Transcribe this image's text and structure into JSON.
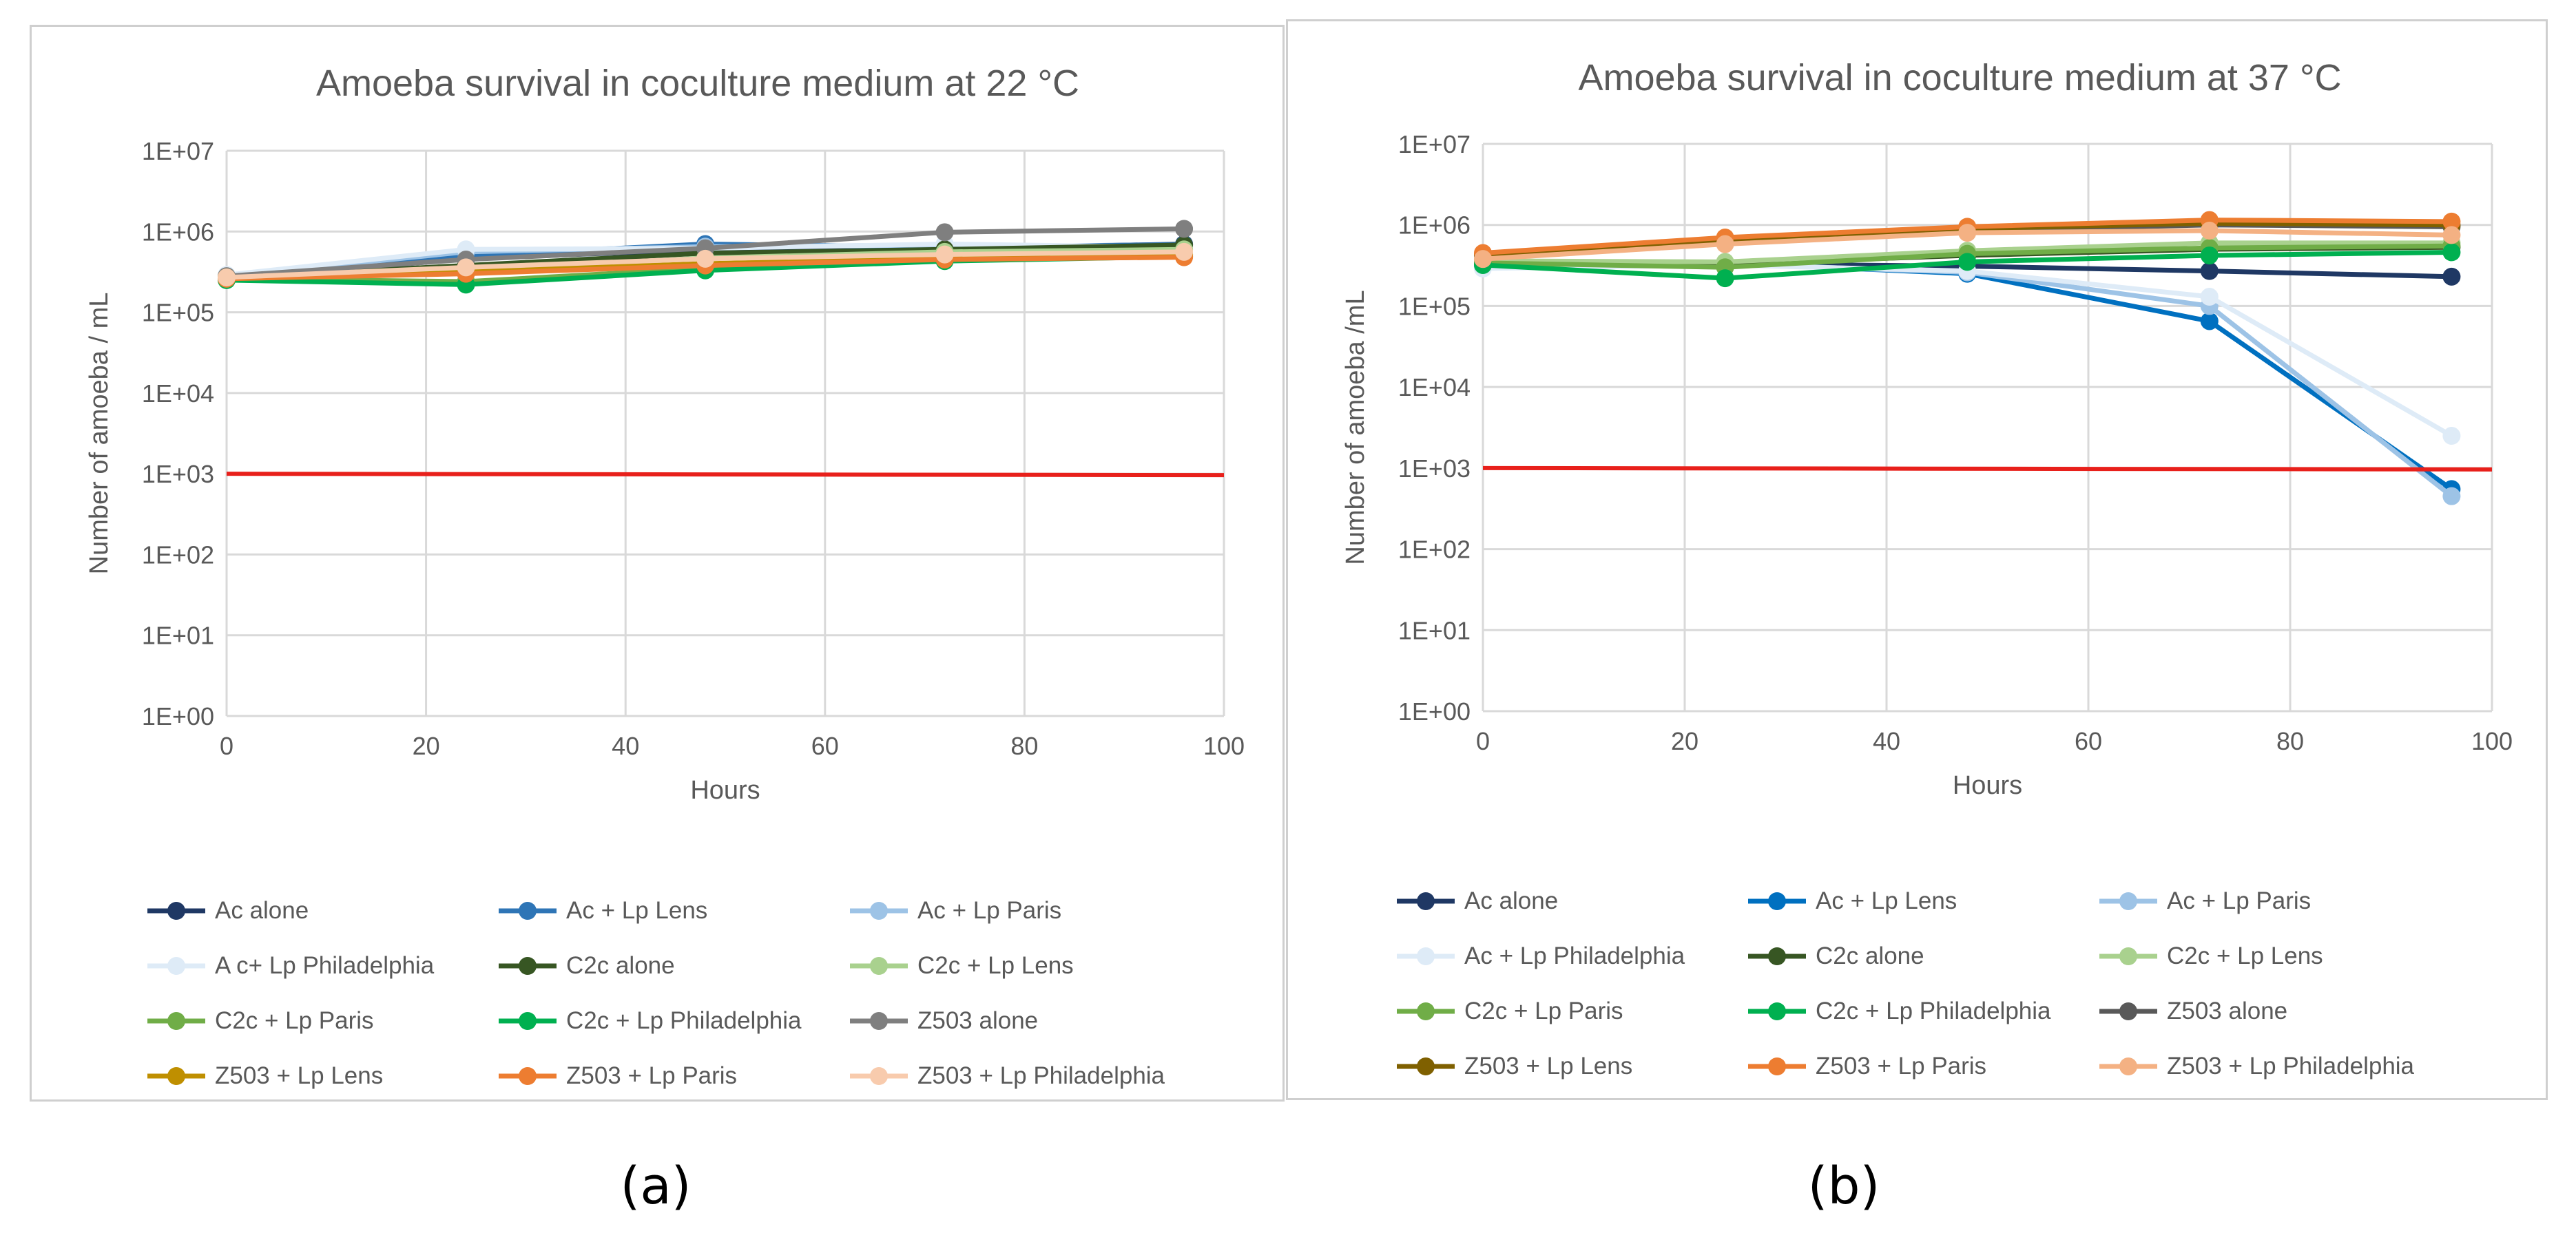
{
  "figure": {
    "panel_labels": [
      "(a)",
      "(b)"
    ]
  },
  "chart_data": [
    {
      "type": "line",
      "title": "Amoeba survival in coculture medium at 22 °C",
      "xlabel": "Hours",
      "ylabel": "Number of amoeba / mL",
      "xlim": [
        0,
        100
      ],
      "ylim": [
        1,
        10000000
      ],
      "yscale": "log",
      "xticks": [
        "0",
        "20",
        "40",
        "60",
        "80",
        "100"
      ],
      "yticks": [
        "1E+00",
        "1E+01",
        "1E+02",
        "1E+03",
        "1E+04",
        "1E+05",
        "1E+06",
        "1E+07"
      ],
      "grid": true,
      "legend_position": "bottom",
      "x": [
        0,
        24,
        48,
        72,
        96
      ],
      "threshold": {
        "value": 1000,
        "color": "#e8201b"
      },
      "series": [
        {
          "name": "Ac alone",
          "color": "#1f3864",
          "values": [
            260000,
            460000,
            600000,
            610000,
            700000
          ]
        },
        {
          "name": "Ac + Lp Lens",
          "color": "#2e75b6",
          "values": [
            270000,
            500000,
            700000,
            640000,
            690000
          ]
        },
        {
          "name": "Ac + Lp Paris",
          "color": "#9dc3e6",
          "values": [
            280000,
            560000,
            650000,
            680000,
            650000
          ]
        },
        {
          "name": "A c+ Lp Philadelphia",
          "color": "#deebf7",
          "values": [
            290000,
            600000,
            620000,
            700000,
            640000
          ]
        },
        {
          "name": "C2c alone",
          "color": "#375623",
          "values": [
            270000,
            380000,
            540000,
            600000,
            680000
          ]
        },
        {
          "name": "C2c + Lp Lens",
          "color": "#a9d18e",
          "values": [
            260000,
            330000,
            470000,
            560000,
            600000
          ]
        },
        {
          "name": "C2c + Lp Paris",
          "color": "#70ad47",
          "values": [
            260000,
            240000,
            350000,
            450000,
            520000
          ]
        },
        {
          "name": "C2c + Lp Philadelphia",
          "color": "#00b050",
          "values": [
            250000,
            220000,
            330000,
            430000,
            490000
          ]
        },
        {
          "name": "Z503 alone",
          "color": "#7f7f7f",
          "values": [
            280000,
            450000,
            620000,
            980000,
            1080000
          ]
        },
        {
          "name": "Z503 + Lp Lens",
          "color": "#bf8f00",
          "values": [
            270000,
            320000,
            400000,
            470000,
            510000
          ]
        },
        {
          "name": "Z503 + Lp Paris",
          "color": "#ed7d31",
          "values": [
            260000,
            300000,
            380000,
            450000,
            480000
          ]
        },
        {
          "name": "Z503 + Lp Philadelphia",
          "color": "#f8cbad",
          "values": [
            270000,
            360000,
            460000,
            520000,
            560000
          ]
        }
      ]
    },
    {
      "type": "line",
      "title": "Amoeba survival in coculture medium at 37 °C",
      "xlabel": "Hours",
      "ylabel": "Number of amoeba /mL",
      "xlim": [
        0,
        100
      ],
      "ylim": [
        1,
        10000000
      ],
      "yscale": "log",
      "xticks": [
        "0",
        "20",
        "40",
        "60",
        "80",
        "100"
      ],
      "yticks": [
        "1E+00",
        "1E+01",
        "1E+02",
        "1E+03",
        "1E+04",
        "1E+05",
        "1E+06",
        "1E+07"
      ],
      "grid": true,
      "legend_position": "bottom",
      "x": [
        0,
        24,
        48,
        72,
        96
      ],
      "threshold": {
        "value": 1000,
        "color": "#e8201b"
      },
      "series": [
        {
          "name": "Ac alone",
          "color": "#1f3864",
          "values": [
            330000,
            330000,
            310000,
            270000,
            230000
          ]
        },
        {
          "name": "Ac + Lp Lens",
          "color": "#0070c0",
          "values": [
            320000,
            340000,
            250000,
            65000,
            550
          ]
        },
        {
          "name": "Ac + Lp Paris",
          "color": "#9dc3e6",
          "values": [
            300000,
            330000,
            260000,
            100000,
            450
          ]
        },
        {
          "name": "Ac + Lp Philadelphia",
          "color": "#deebf7",
          "values": [
            290000,
            320000,
            270000,
            130000,
            2500
          ]
        },
        {
          "name": "C2c alone",
          "color": "#375623",
          "values": [
            350000,
            330000,
            420000,
            500000,
            530000
          ]
        },
        {
          "name": "C2c + Lp Lens",
          "color": "#a9d18e",
          "values": [
            360000,
            350000,
            480000,
            600000,
            600000
          ]
        },
        {
          "name": "C2c + Lp Paris",
          "color": "#70ad47",
          "values": [
            340000,
            300000,
            440000,
            520000,
            550000
          ]
        },
        {
          "name": "C2c + Lp Philadelphia",
          "color": "#00b050",
          "values": [
            320000,
            220000,
            350000,
            420000,
            460000
          ]
        },
        {
          "name": "Z503 alone",
          "color": "#595959",
          "values": [
            420000,
            620000,
            850000,
            1000000,
            950000
          ]
        },
        {
          "name": "Z503 + Lp Lens",
          "color": "#7f6000",
          "values": [
            430000,
            660000,
            900000,
            1050000,
            1000000
          ]
        },
        {
          "name": "Z503 + Lp Paris",
          "color": "#ed7d31",
          "values": [
            450000,
            700000,
            950000,
            1150000,
            1100000
          ]
        },
        {
          "name": "Z503 + Lp Philadelphia",
          "color": "#f4b183",
          "values": [
            380000,
            580000,
            800000,
            850000,
            750000
          ]
        }
      ]
    }
  ]
}
